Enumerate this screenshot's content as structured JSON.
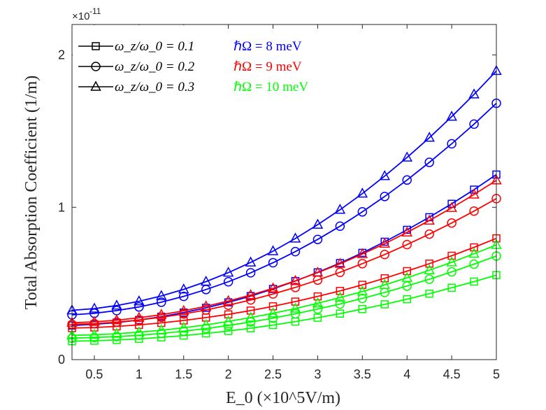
{
  "chart_data": {
    "type": "line",
    "title": "",
    "xlabel": "E_0 (×10^5V/m)",
    "ylabel": "Total Absorption Coefficient (1/m)",
    "y_exponent_label": "×10",
    "y_exponent_power": "-11",
    "xlim": [
      0.25,
      5
    ],
    "ylim": [
      0,
      2.2
    ],
    "x_ticks": [
      0.5,
      1,
      1.5,
      2,
      2.5,
      3,
      3.5,
      4,
      4.5,
      5
    ],
    "x_tick_labels": [
      "0.5",
      "1",
      "1.5",
      "2",
      "2.5",
      "3",
      "3.5",
      "4",
      "4.5",
      "5"
    ],
    "y_ticks": [
      0,
      1,
      2
    ],
    "y_tick_labels": [
      "0",
      "1",
      "2"
    ],
    "x": [
      0.25,
      0.5,
      0.75,
      1.0,
      1.25,
      1.5,
      1.75,
      2.0,
      2.25,
      2.5,
      2.75,
      3.0,
      3.25,
      3.5,
      3.75,
      4.0,
      4.25,
      4.5,
      4.75,
      5.0
    ],
    "legend_markers": [
      {
        "marker": "square",
        "label": "ω_z/ω_0 = 0.1"
      },
      {
        "marker": "circle",
        "label": "ω_z/ω_0 = 0.2"
      },
      {
        "marker": "triangle",
        "label": "ω_z/ω_0 = 0.3"
      }
    ],
    "legend_colors": [
      {
        "label": "ℏΩ = 8 meV",
        "color": "#0000ff"
      },
      {
        "label": "ℏΩ = 9 meV",
        "color": "#ff0000"
      },
      {
        "label": "ℏΩ = 10 meV",
        "color": "#00ff00"
      }
    ],
    "series": [
      {
        "name": "8 meV, ωz/ω0=0.1",
        "color": "#0000ff",
        "marker": "square",
        "values": [
          0.224,
          0.232,
          0.243,
          0.26,
          0.282,
          0.309,
          0.34,
          0.376,
          0.417,
          0.464,
          0.516,
          0.573,
          0.634,
          0.701,
          0.774,
          0.852,
          0.935,
          1.023,
          1.116,
          1.215
        ]
      },
      {
        "name": "8 meV, ωz/ω0=0.2",
        "color": "#0000ff",
        "marker": "circle",
        "values": [
          0.294,
          0.304,
          0.322,
          0.346,
          0.377,
          0.415,
          0.46,
          0.511,
          0.57,
          0.636,
          0.709,
          0.789,
          0.876,
          0.97,
          1.071,
          1.179,
          1.295,
          1.417,
          1.546,
          1.683
        ]
      },
      {
        "name": "8 meV, ωz/ω0=0.3",
        "color": "#0000ff",
        "marker": "triangle",
        "values": [
          0.324,
          0.335,
          0.355,
          0.383,
          0.418,
          0.461,
          0.512,
          0.571,
          0.638,
          0.712,
          0.795,
          0.886,
          0.984,
          1.09,
          1.205,
          1.327,
          1.457,
          1.595,
          1.741,
          1.895
        ]
      },
      {
        "name": "9 meV, ωz/ω0=0.1",
        "color": "#ff0000",
        "marker": "square",
        "values": [
          0.207,
          0.211,
          0.218,
          0.228,
          0.241,
          0.257,
          0.276,
          0.297,
          0.322,
          0.35,
          0.381,
          0.415,
          0.451,
          0.491,
          0.534,
          0.581,
          0.63,
          0.682,
          0.737,
          0.796
        ]
      },
      {
        "name": "9 meV, ωz/ω0=0.2",
        "color": "#ff0000",
        "marker": "circle",
        "values": [
          0.231,
          0.236,
          0.246,
          0.26,
          0.278,
          0.3,
          0.326,
          0.357,
          0.392,
          0.431,
          0.474,
          0.522,
          0.573,
          0.63,
          0.69,
          0.755,
          0.824,
          0.897,
          0.975,
          1.057
        ]
      },
      {
        "name": "9 meV, ωz/ω0=0.3",
        "color": "#ff0000",
        "marker": "triangle",
        "values": [
          0.242,
          0.248,
          0.259,
          0.275,
          0.295,
          0.32,
          0.35,
          0.385,
          0.424,
          0.468,
          0.517,
          0.571,
          0.629,
          0.693,
          0.761,
          0.835,
          0.913,
          0.996,
          1.084,
          1.177
        ]
      },
      {
        "name": "10 meV, ωz/ω0=0.1",
        "color": "#00ff00",
        "marker": "square",
        "values": [
          0.121,
          0.124,
          0.129,
          0.136,
          0.146,
          0.158,
          0.172,
          0.188,
          0.206,
          0.227,
          0.25,
          0.275,
          0.302,
          0.332,
          0.363,
          0.397,
          0.433,
          0.472,
          0.512,
          0.555
        ]
      },
      {
        "name": "10 meV, ωz/ω0=0.2",
        "color": "#00ff00",
        "marker": "circle",
        "values": [
          0.141,
          0.145,
          0.151,
          0.16,
          0.172,
          0.187,
          0.204,
          0.224,
          0.247,
          0.272,
          0.301,
          0.332,
          0.365,
          0.402,
          0.441,
          0.483,
          0.528,
          0.576,
          0.627,
          0.68
        ]
      },
      {
        "name": "10 meV, ωz/ω0=0.3",
        "color": "#00ff00",
        "marker": "triangle",
        "values": [
          0.159,
          0.163,
          0.17,
          0.18,
          0.193,
          0.209,
          0.228,
          0.251,
          0.276,
          0.304,
          0.335,
          0.37,
          0.407,
          0.447,
          0.491,
          0.537,
          0.587,
          0.639,
          0.695,
          0.753
        ]
      }
    ]
  }
}
